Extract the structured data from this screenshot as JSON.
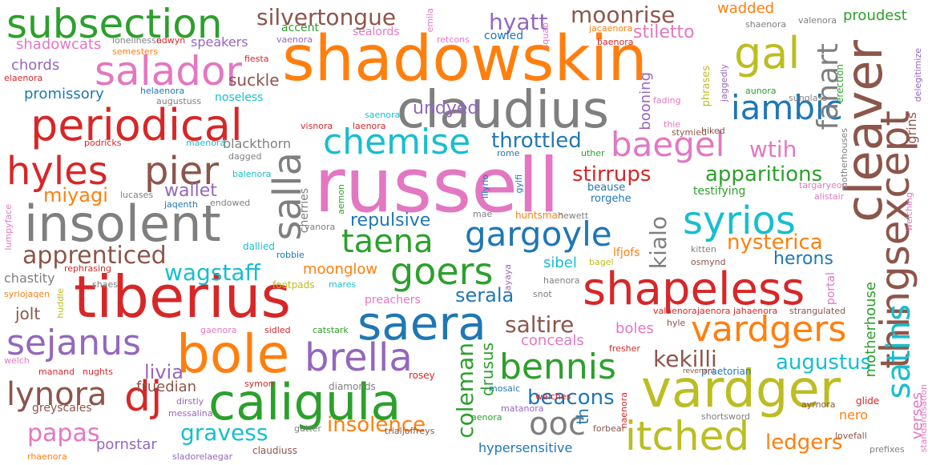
{
  "words": [
    {
      "text": "shadowskin",
      "color": "#ff7f0e"
    },
    {
      "text": "russell",
      "color": "#e377c2"
    },
    {
      "text": "claudius",
      "color": "#7f7f7f"
    },
    {
      "text": "tiberius",
      "color": "#d62728"
    },
    {
      "text": "insolent",
      "color": "#7f7f7f"
    },
    {
      "text": "caligula",
      "color": "#2ca02c"
    },
    {
      "text": "vardger",
      "color": "#bcbd22"
    },
    {
      "text": "bole",
      "color": "#ff7f0e"
    },
    {
      "text": "cleaver",
      "color": "#8c564b"
    },
    {
      "text": "subsection",
      "color": "#2ca02c"
    },
    {
      "text": "periodical",
      "color": "#d62728"
    },
    {
      "text": "shapeless",
      "color": "#d62728"
    },
    {
      "text": "saera",
      "color": "#1f77b4"
    },
    {
      "text": "thingsexcept",
      "color": "#8c564b"
    },
    {
      "text": "salador",
      "color": "#e377c2"
    },
    {
      "text": "salla",
      "color": "#7f7f7f"
    },
    {
      "text": "gal",
      "color": "#bcbd22"
    },
    {
      "text": "chemise",
      "color": "#17becf"
    },
    {
      "text": "syrios",
      "color": "#17becf"
    },
    {
      "text": "brella",
      "color": "#9467bd"
    },
    {
      "text": "vardgers",
      "color": "#ff7f0e"
    },
    {
      "text": "itched",
      "color": "#bcbd22"
    },
    {
      "text": "sejanus",
      "color": "#9467bd"
    },
    {
      "text": "bennis",
      "color": "#2ca02c"
    },
    {
      "text": "gargoyle",
      "color": "#1f77b4"
    },
    {
      "text": "hyles",
      "color": "#d62728"
    },
    {
      "text": "pier",
      "color": "#8c564b"
    },
    {
      "text": "goers",
      "color": "#2ca02c"
    },
    {
      "text": "taena",
      "color": "#2ca02c"
    },
    {
      "text": "baegel",
      "color": "#e377c2"
    },
    {
      "text": "iambic",
      "color": "#1f77b4"
    },
    {
      "text": "satins",
      "color": "#17becf"
    },
    {
      "text": "lynora",
      "color": "#8c564b"
    },
    {
      "text": "dj",
      "color": "#d62728"
    },
    {
      "text": "ooc",
      "color": "#7f7f7f"
    },
    {
      "text": "apprenticed",
      "color": "#8c564b"
    },
    {
      "text": "fanart",
      "color": "#7f7f7f"
    },
    {
      "text": "coleman",
      "color": "#2ca02c"
    },
    {
      "text": "moonrise",
      "color": "#8c564b"
    },
    {
      "text": "silvertongue",
      "color": "#8c564b"
    },
    {
      "text": "hyatt",
      "color": "#9467bd"
    },
    {
      "text": "papas",
      "color": "#e377c2"
    },
    {
      "text": "wagstaff",
      "color": "#17becf"
    },
    {
      "text": "throttled",
      "color": "#1f77b4"
    },
    {
      "text": "stirrups",
      "color": "#d62728"
    },
    {
      "text": "apparitions",
      "color": "#2ca02c"
    },
    {
      "text": "nysterica",
      "color": "#ff7f0e"
    },
    {
      "text": "wtih",
      "color": "#e377c2"
    },
    {
      "text": "kekilli",
      "color": "#8c564b"
    },
    {
      "text": "augustus",
      "color": "#17becf"
    },
    {
      "text": "beacons",
      "color": "#1f77b4"
    },
    {
      "text": "gravess",
      "color": "#17becf"
    },
    {
      "text": "insolence",
      "color": "#ff7f0e"
    },
    {
      "text": "ledgers",
      "color": "#ff7f0e"
    },
    {
      "text": "saltire",
      "color": "#8c564b"
    },
    {
      "text": "livia",
      "color": "#9467bd"
    },
    {
      "text": "miyagi",
      "color": "#ff7f0e"
    },
    {
      "text": "stiletto",
      "color": "#e377c2"
    },
    {
      "text": "undyed",
      "color": "#9467bd"
    },
    {
      "text": "repulsive",
      "color": "#1f77b4"
    },
    {
      "text": "serala",
      "color": "#1f77b4"
    },
    {
      "text": "herons",
      "color": "#1f77b4"
    },
    {
      "text": "kialo",
      "color": "#7f7f7f"
    },
    {
      "text": "drusus",
      "color": "#2ca02c"
    },
    {
      "text": "fruedian",
      "color": "#8c564b"
    },
    {
      "text": "wallet",
      "color": "#9467bd"
    },
    {
      "text": "suckle",
      "color": "#8c564b"
    },
    {
      "text": "moonglow",
      "color": "#ff7f0e"
    },
    {
      "text": "conceals",
      "color": "#e377c2"
    },
    {
      "text": "boles",
      "color": "#e377c2"
    },
    {
      "text": "nero",
      "color": "#ff7f0e"
    },
    {
      "text": "jolt",
      "color": "#8c564b"
    },
    {
      "text": "chastity",
      "color": "#7f7f7f"
    },
    {
      "text": "pornstar",
      "color": "#9467bd"
    },
    {
      "text": "hypersensitive",
      "color": "#1f77b4"
    },
    {
      "text": "sibel",
      "color": "#17becf"
    },
    {
      "text": "proudest",
      "color": "#2ca02c"
    },
    {
      "text": "wadded",
      "color": "#ff7f0e"
    },
    {
      "text": "promissory",
      "color": "#1f77b4"
    },
    {
      "text": "chords",
      "color": "#9467bd"
    },
    {
      "text": "shadowcats",
      "color": "#e377c2"
    },
    {
      "text": "speakers",
      "color": "#9467bd"
    },
    {
      "text": "motherhouse",
      "color": "#2ca02c"
    },
    {
      "text": "verses",
      "color": "#e377c2"
    },
    {
      "text": "booning",
      "color": "#9467bd"
    },
    {
      "text": "th",
      "color": "#1f77b4"
    },
    {
      "text": "blackthorn",
      "color": "#7f7f7f"
    },
    {
      "text": "greyscales",
      "color": "#8c564b"
    },
    {
      "text": "cowled",
      "color": "#1f77b4"
    },
    {
      "text": "sealords",
      "color": "#e377c2"
    },
    {
      "text": "accent",
      "color": "#2ca02c"
    },
    {
      "text": "noseless",
      "color": "#17becf"
    },
    {
      "text": "lfjofs",
      "color": "#ff7f0e"
    },
    {
      "text": "portal",
      "color": "#e377c2"
    },
    {
      "text": "testifying",
      "color": "#2ca02c"
    },
    {
      "text": "grins",
      "color": "#8c564b"
    },
    {
      "text": "cherries",
      "color": "#7f7f7f"
    },
    {
      "text": "huntsman",
      "color": "#ff7f0e"
    },
    {
      "text": "rorgehe",
      "color": "#1f77b4"
    },
    {
      "text": "beause",
      "color": "#1f77b4"
    },
    {
      "text": "phrases",
      "color": "#bcbd22"
    },
    {
      "text": "aunora",
      "color": "#2ca02c"
    },
    {
      "text": "sunglass",
      "color": "#7f7f7f"
    },
    {
      "text": "erection",
      "color": "#2ca02c"
    },
    {
      "text": "shaenora",
      "color": "#7f7f7f"
    },
    {
      "text": "valenora",
      "color": "#7f7f7f"
    },
    {
      "text": "jaggedly",
      "color": "#9467bd"
    },
    {
      "text": "delegitimize",
      "color": "#9467bd"
    },
    {
      "text": "stymied",
      "color": "#8c564b"
    },
    {
      "text": "hiked",
      "color": "#8c564b"
    },
    {
      "text": "strangulated",
      "color": "#8c564b"
    },
    {
      "text": "valaenora",
      "color": "#d62728"
    },
    {
      "text": "jaenora",
      "color": "#d62728"
    },
    {
      "text": "jahaenora",
      "color": "#d62728"
    },
    {
      "text": "praetorian",
      "color": "#1f77b4"
    },
    {
      "text": "revenant",
      "color": "#8c564b"
    },
    {
      "text": "glide",
      "color": "#d62728"
    },
    {
      "text": "ayrnora",
      "color": "#8c564b"
    },
    {
      "text": "lovefall",
      "color": "#8c564b"
    },
    {
      "text": "prefixes",
      "color": "#7f7f7f"
    },
    {
      "text": "standardisation",
      "color": "#e377c2"
    },
    {
      "text": "shortsword",
      "color": "#7f7f7f"
    },
    {
      "text": "fresher",
      "color": "#d62728"
    },
    {
      "text": "welches",
      "color": "#d62728"
    },
    {
      "text": "forbear",
      "color": "#8c564b"
    },
    {
      "text": "matanora",
      "color": "#9467bd"
    },
    {
      "text": "mosaic",
      "color": "#1f77b4"
    },
    {
      "text": "trialjoffreys",
      "color": "#8c564b"
    },
    {
      "text": "gutter",
      "color": "#7f7f7f"
    },
    {
      "text": "claudiuss",
      "color": "#8c564b"
    },
    {
      "text": "diamonds",
      "color": "#7f7f7f"
    },
    {
      "text": "rosey",
      "color": "#d62728"
    },
    {
      "text": "catstark",
      "color": "#2ca02c"
    },
    {
      "text": "sidled",
      "color": "#d62728"
    },
    {
      "text": "symon",
      "color": "#d62728"
    },
    {
      "text": "messalina",
      "color": "#9467bd"
    },
    {
      "text": "dirstly",
      "color": "#9467bd"
    },
    {
      "text": "sladorelaegar",
      "color": "#9467bd"
    },
    {
      "text": "rhaenora",
      "color": "#ff7f0e"
    },
    {
      "text": "nughts",
      "color": "#d62728"
    },
    {
      "text": "manand",
      "color": "#d62728"
    },
    {
      "text": "welch",
      "color": "#e377c2"
    },
    {
      "text": "gaenora",
      "color": "#e377c2"
    },
    {
      "text": "huddle",
      "color": "#bcbd22"
    },
    {
      "text": "syriojaqen",
      "color": "#ff7f0e"
    },
    {
      "text": "shaes",
      "color": "#7f7f7f"
    },
    {
      "text": "footpads",
      "color": "#bcbd22"
    },
    {
      "text": "mares",
      "color": "#17becf"
    },
    {
      "text": "preachers",
      "color": "#e377c2"
    },
    {
      "text": "snot",
      "color": "#7f7f7f"
    },
    {
      "text": "haenora",
      "color": "#7f7f7f"
    },
    {
      "text": "bagel",
      "color": "#bcbd22"
    },
    {
      "text": "layaya",
      "color": "#9467bd"
    },
    {
      "text": "osmynd",
      "color": "#8c564b"
    },
    {
      "text": "kitten",
      "color": "#7f7f7f"
    },
    {
      "text": "hyle",
      "color": "#8c564b"
    },
    {
      "text": "rephrasing",
      "color": "#d62728"
    },
    {
      "text": "robbie",
      "color": "#1f77b4"
    },
    {
      "text": "dallied",
      "color": "#17becf"
    },
    {
      "text": "vanora",
      "color": "#7f7f7f"
    },
    {
      "text": "lumpyface",
      "color": "#e377c2"
    },
    {
      "text": "jaqenth",
      "color": "#1f77b4"
    },
    {
      "text": "lucases",
      "color": "#7f7f7f"
    },
    {
      "text": "endowed",
      "color": "#7f7f7f"
    },
    {
      "text": "balenora",
      "color": "#17becf"
    },
    {
      "text": "dagged",
      "color": "#7f7f7f"
    },
    {
      "text": "podricks",
      "color": "#d62728"
    },
    {
      "text": "maenora",
      "color": "#17becf"
    },
    {
      "text": "visnora",
      "color": "#d62728"
    },
    {
      "text": "laenora",
      "color": "#d62728"
    },
    {
      "text": "saenora",
      "color": "#17becf"
    },
    {
      "text": "augustuss",
      "color": "#7f7f7f"
    },
    {
      "text": "helaenora",
      "color": "#1f77b4"
    },
    {
      "text": "elaenora",
      "color": "#d62728"
    },
    {
      "text": "semesters",
      "color": "#ff7f0e"
    },
    {
      "text": "lonelinessn",
      "color": "#7f7f7f"
    },
    {
      "text": "edwyn",
      "color": "#d62728"
    },
    {
      "text": "vaenora",
      "color": "#9467bd"
    },
    {
      "text": "fiesta",
      "color": "#d62728"
    },
    {
      "text": "emila",
      "color": "#e377c2"
    },
    {
      "text": "retcons",
      "color": "#e377c2"
    },
    {
      "text": "squab",
      "color": "#e377c2"
    },
    {
      "text": "jacaenora",
      "color": "#ff7f0e"
    },
    {
      "text": "baenora",
      "color": "#d62728"
    },
    {
      "text": "fading",
      "color": "#e377c2"
    },
    {
      "text": "thie",
      "color": "#e377c2"
    },
    {
      "text": "uther",
      "color": "#2ca02c"
    },
    {
      "text": "rome",
      "color": "#1f77b4"
    },
    {
      "text": "gylfi",
      "color": "#1f77b4"
    },
    {
      "text": "illyrio",
      "color": "#1f77b4"
    },
    {
      "text": "mae",
      "color": "#7f7f7f"
    },
    {
      "text": "hewett",
      "color": "#7f7f7f"
    },
    {
      "text": "targaryeon",
      "color": "#e377c2"
    },
    {
      "text": "alistair",
      "color": "#e377c2"
    },
    {
      "text": "welching",
      "color": "#e377c2"
    },
    {
      "text": "motherhouses",
      "color": "#7f7f7f"
    },
    {
      "text": "aemon",
      "color": "#2ca02c"
    },
    {
      "text": "aenora",
      "color": "#2ca02c"
    },
    {
      "text": "naenora",
      "color": "#d62728"
    }
  ]
}
